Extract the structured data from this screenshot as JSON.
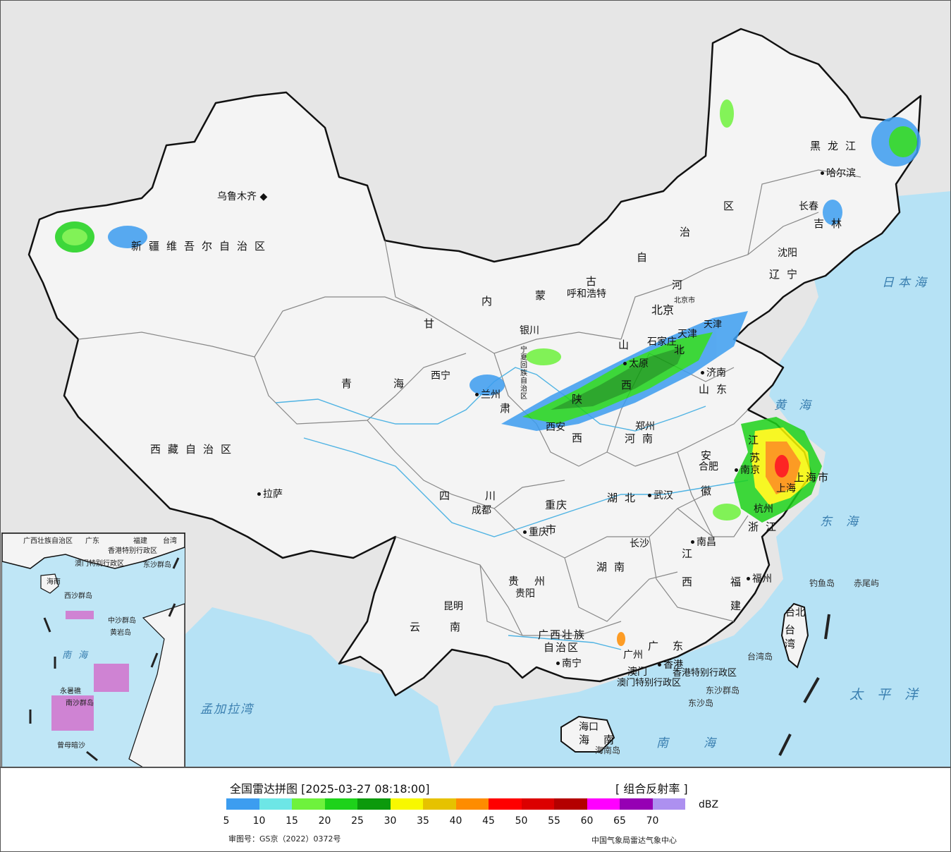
{
  "header": {
    "title": "全国雷达拼图 [2025-03-27 08:18:00]",
    "product": "[ 组合反射率 ]"
  },
  "legend": {
    "unit": "dBZ",
    "colors": [
      "#3c9df0",
      "#6de6e6",
      "#6ef23c",
      "#1ed21a",
      "#0c9a0c",
      "#f8f800",
      "#e6c200",
      "#fe8c00",
      "#ff0000",
      "#dc0000",
      "#b40000",
      "#ff00ff",
      "#9600b4",
      "#ad90f0"
    ],
    "ticks": [
      "5",
      "10",
      "15",
      "20",
      "25",
      "30",
      "35",
      "40",
      "45",
      "50",
      "55",
      "60",
      "65",
      "70"
    ]
  },
  "footer": {
    "map_approval": "审图号：GS京（2022）0372号",
    "producer": "中国气象局雷达气象中心"
  },
  "map": {
    "colors": {
      "land": "#f4f4f4",
      "sea": "#b6e2f5",
      "outside": "#e6e6e6",
      "border": "#111111"
    },
    "provinces": {
      "xinjiang": "新疆维吾尔自治区",
      "xizang": "西藏自治区",
      "qinghai_a": "青",
      "qinghai_b": "海",
      "gansu_a": "甘",
      "gansu_b": "肃",
      "nmg_a": "内",
      "nmg_b": "蒙",
      "nmg_c": "古",
      "nmg_d": "自",
      "nmg_e": "治",
      "nmg_f": "区",
      "heilongjiang": "黑龙江",
      "jilin": "吉林",
      "liaoning": "辽宁",
      "hebei_a": "河",
      "hebei_b": "北",
      "shanxi_a": "山",
      "shanxi_b": "西",
      "shaanxi_a": "陕",
      "shaanxi_b": "西",
      "ningxia": "宁夏回族自治区",
      "shandong": "山东",
      "henan": "河南",
      "jiangsu_a": "江",
      "jiangsu_b": "苏",
      "anhui_a": "安",
      "anhui_b": "徽",
      "shanghai": "上海市",
      "zhejiang": "浙江",
      "hubei": "湖北",
      "hunan": "湖南",
      "jiangxi_a": "江",
      "jiangxi_b": "西",
      "fujian_a": "福",
      "fujian_b": "建",
      "sichuan": "四川",
      "chongqing_a": "重庆",
      "chongqing_b": "市",
      "guizhou": "贵州",
      "yunnan": "云南",
      "guangxi_a": "广西壮族",
      "guangxi_b": "自治区",
      "guangdong": "广东",
      "hainan": "海南",
      "taiwan": "台湾",
      "hk": "香港特别行政区",
      "macau": "澳门特别行政区",
      "tianjin": "天津",
      "beijing_small": "北京市"
    },
    "cities": {
      "urumqi": "乌鲁木齐",
      "lhasa": "拉萨",
      "xining": "西宁",
      "lanzhou": "兰州",
      "yinchuan": "银川",
      "hohhot": "呼和浩特",
      "beijing": "北京",
      "tianjin": "天津",
      "shijiazhuang": "石家庄",
      "taiyuan": "太原",
      "jinan": "济南",
      "zhengzhou": "郑州",
      "xian": "西安",
      "harbin": "哈尔滨",
      "changchun": "长春",
      "shenyang": "沈阳",
      "nanjing": "南京",
      "hefei": "合肥",
      "shanghai": "上海",
      "hangzhou": "杭州",
      "wuhan": "武汉",
      "changsha": "长沙",
      "nanchang": "南昌",
      "fuzhou": "福州",
      "chengdu": "成都",
      "chongqing": "重庆",
      "guiyang": "贵阳",
      "kunming": "昆明",
      "nanning": "南宁",
      "guangzhou": "广州",
      "macau": "澳门",
      "hongkong": "香港",
      "haikou": "海口",
      "taipei": "台北"
    },
    "seas": {
      "japan_sea": "日本海",
      "yellow_sea": "黄海",
      "east_sea": "东海",
      "south_sea": "南海",
      "pacific": "太平洋",
      "bengal": "孟加拉湾"
    },
    "islands": {
      "diaoyu": "钓鱼岛",
      "chiwei": "赤尾屿",
      "taiwan_island": "台湾岛",
      "dongsha_islands": "东沙群岛",
      "dongsha_island": "东沙岛",
      "hainan_island": "海南岛"
    },
    "inset": {
      "guangxi": "广西壮族自治区",
      "guangdong": "广东",
      "fujian": "福建",
      "taiwan": "台湾",
      "hk": "香港特别行政区",
      "macau": "澳门特别行政区",
      "hainan": "海南",
      "dongsha": "东沙群岛",
      "xisha": "西沙群岛",
      "zhongsha": "中沙群岛",
      "huangyan": "黄岩岛",
      "nansha": "南沙群岛",
      "yongshu": "永暑礁",
      "zengmu": "曾母暗沙",
      "south_sea": "南海"
    }
  }
}
